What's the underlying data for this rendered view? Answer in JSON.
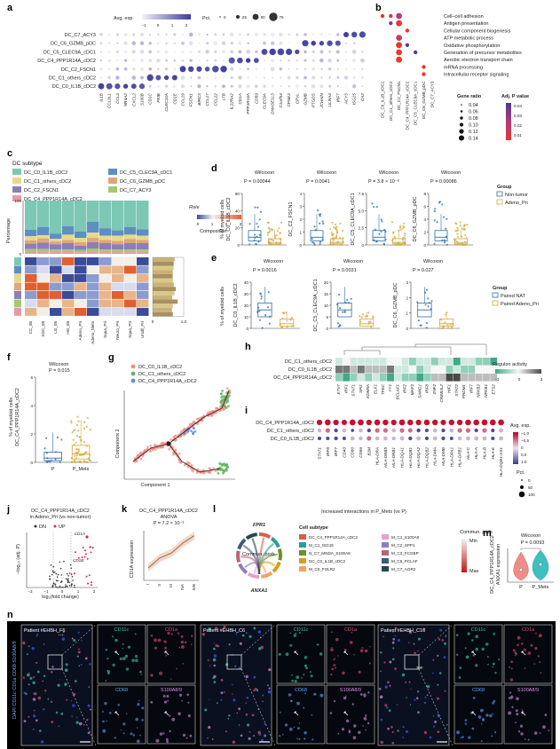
{
  "panel_labels": [
    "a",
    "b",
    "c",
    "d",
    "e",
    "f",
    "g",
    "h",
    "i",
    "j",
    "k",
    "l",
    "m",
    "n"
  ],
  "a": {
    "legend_expr_title": "Avg. exp.",
    "legend_expr_ticks": [
      "−1",
      "0",
      "1",
      "2"
    ],
    "legend_pct_title": "Pct.",
    "legend_pct_values": [
      "0",
      "25",
      "50",
      "75"
    ],
    "rows": [
      "DC_C7_ACY3",
      "DC_C6_GZMB_pDC",
      "DC_C5_CLEC9A_cDC1",
      "DC_C4_PPP1R14A_cDC2",
      "DC_C2_FSCN1",
      "DC_C1_others_cDC2",
      "DC_C0_IL1B_cDC2"
    ],
    "genes": [
      "IL1B",
      "CCL3L1",
      "CCL3",
      "NR4A2",
      "CXCL2",
      "S100B",
      "CD1C",
      "PKIB",
      "CLEC10A",
      "CD1E",
      "CCL19",
      "FSCN1",
      "BIRC3",
      "CCL17",
      "CCL22",
      "LTB",
      "IL22RA2",
      "CD1A",
      "PPP1R14A",
      "CD59",
      "CLEC9A",
      "DNASE1L3",
      "C1orf54",
      "CPNE3",
      "CPVL",
      "GZMB",
      "PTGDS",
      "JCHAIN",
      "LILRA4",
      "IRF7",
      "ACY3",
      "ISG15",
      "CA2"
    ]
  },
  "b": {
    "terms": [
      "Cell–cell adhesion",
      "Antigen presentation",
      "Cellular component biogenesis",
      "ATP metabolic process",
      "Oxidative phosphorylation",
      "Generation of precursor metabolites",
      "Aerobic electron transport chain",
      "mRNA processing",
      "Intracellular receptor signaling"
    ],
    "clusters": [
      "DC_C0_IL1B_cDC2",
      "DC_C1_others_cDC2",
      "DC_C2_FSCN1",
      "DC_C4_PPP1R14A_cDC2",
      "DC_C5_CLEC9A_cDC1",
      "DC_C6_GZMB_pDC",
      "DC_C7_ACY3"
    ],
    "gene_ratio_title": "Gene ratio",
    "gene_ratio_values": [
      "0.04",
      "0.06",
      "0.08",
      "0.10",
      "0.12",
      "0.14"
    ],
    "padj_title": "Adj. P value",
    "padj_ticks": [
      "0.04",
      "0.03",
      "0.02",
      "0.01"
    ]
  },
  "c": {
    "subtype_title": "DC subtype",
    "subtypes": [
      {
        "name": "DC_C0_IL1B_cDC2",
        "color": "#7cc8b4"
      },
      {
        "name": "DC_C5_CLEC9A_cDC1",
        "color": "#5d8fc2"
      },
      {
        "name": "DC_C1_others_cDC2",
        "color": "#e8d98a"
      },
      {
        "name": "DC_C6_GZMB_pDC",
        "color": "#e0a57a"
      },
      {
        "name": "DC_C2_FSCN1",
        "color": "#8c7fb8"
      },
      {
        "name": "DC_C7_ACY3",
        "color": "#a5c96e"
      },
      {
        "name": "DC_C4_PPP1R14A_cDC2",
        "color": "#e69aa8"
      }
    ],
    "ylabel": "Percentage",
    "yticks": [
      "0",
      "100"
    ],
    "roe_title": "Ro/e",
    "roe_ticks": [
      "0",
      "1",
      "2",
      "3"
    ],
    "composition_title": "Composition",
    "comp_ticks": [
      "0",
      "1.0"
    ],
    "xlabels": [
      "CC_08",
      "XGC_08",
      "LG_08",
      "HG_08",
      "Adeno_Pri",
      "Adeno_Mets",
      "Squa_Pri",
      "Neuro_Pri",
      "Squa_Pri",
      "Undif_Pri"
    ]
  },
  "d": {
    "ylabel": "% of myeloid cells",
    "plots": [
      {
        "test": "Wilcoxon",
        "p": "P = 0.00044",
        "ylab": "DC_C0_IL1B_cDC2",
        "yticks": [
          "0",
          "20",
          "40",
          "60"
        ]
      },
      {
        "test": "Wilcoxon",
        "p": "P = 0.0041",
        "ylab": "DC_C2_FSCN1",
        "yticks": [
          "0",
          "1",
          "2",
          "3",
          "4"
        ]
      },
      {
        "test": "Wilcoxon",
        "p": "P = 3.8 × 10⁻⁶",
        "ylab": "DC_C5_CLEC9A_cDC1",
        "yticks": [
          "0",
          "2.5",
          "5.0",
          "7.5"
        ]
      },
      {
        "test": "Wilcoxon",
        "p": "P = 0.00086",
        "ylab": "DC_C6_GZMB_pDC",
        "yticks": [
          "0",
          "2",
          "4",
          "6",
          "8"
        ]
      }
    ],
    "group_title": "Group",
    "groups": [
      "Non-tumor",
      "Adeno_Pri"
    ]
  },
  "e": {
    "ylabel": "% of myeloid cells",
    "plots": [
      {
        "test": "Wilcoxon",
        "p": "P = 0.0016",
        "ylab": "DC_C0_IL1B_cDC2",
        "yticks": [
          "0",
          "10",
          "20",
          "30",
          "40"
        ]
      },
      {
        "test": "Wilcoxon",
        "p": "P = 0.0031",
        "ylab": "DC_C5_CLEC9A_cDC1",
        "yticks": [
          "0",
          "5",
          "10",
          "15",
          "20"
        ]
      },
      {
        "test": "Wilcoxon",
        "p": "P = 0.027",
        "ylab": "DC_C6_GZMB_pDC",
        "yticks": [
          "0",
          "1",
          "2",
          "3"
        ]
      }
    ],
    "group_title": "Group",
    "groups": [
      "Paired NAT",
      "Paired Adeno_Pri"
    ]
  },
  "f": {
    "test": "Wilcoxon",
    "p": "P = 0.015",
    "ylabel1": "% of myeloid cells",
    "ylabel2": "DC_C4_PPP1R14A_cDC2",
    "yticks": [
      "0",
      "2",
      "4",
      "6"
    ],
    "xlabels": [
      "P",
      "P_Mets"
    ]
  },
  "g": {
    "legend": [
      {
        "name": "DC_C0_IL1B_cDC2",
        "color": "#f28b82"
      },
      {
        "name": "DC_C1_others_cDC2",
        "color": "#5cb85c"
      },
      {
        "name": "DC_C4_PPP1R14A_cDC2",
        "color": "#6a8fd0"
      }
    ],
    "xlabel": "Component 1",
    "ylabel": "Component 2"
  },
  "h": {
    "rows": [
      "DC_C1_others_cDC2",
      "DC_C0_IL1B_cDC2",
      "DC_C4_PPP1R14A_cDC2"
    ],
    "tfs": [
      "ETV7",
      "IRF1",
      "STAT1",
      "SPI1",
      "KDM5A",
      "ELF1",
      "TFEC",
      "YY1",
      "BCLAF1",
      "IRF2",
      "MAF3",
      "SAMD1",
      "IRF8",
      "ZNF2",
      "CREB3L2",
      "HIF1",
      "STAT2",
      "PRDM1",
      "IRF7",
      "NFKB2",
      "NFKB1",
      "ETS2"
    ],
    "legend_title": "Regulon activity",
    "legend_ticks": [
      "−3",
      "0",
      "3"
    ]
  },
  "i": {
    "rows": [
      "DC_C4_PPP1R14A_cDC2",
      "DC_C1_others_cDC2",
      "DC_C0_IL1B_cDC2"
    ],
    "genes": [
      "STAT1",
      "IRF8",
      "IRF7",
      "CD40",
      "CD80",
      "CD86",
      "B2M",
      "HLA-DRA",
      "HLA-DRB5",
      "HLA-DRB1",
      "HLA-DQA1",
      "HLA-DQB1",
      "HLA-DQA2",
      "HLA-DQB2",
      "HLA-DMA",
      "HLA-DMB",
      "HLA-DPA1",
      "HLA-DPB1",
      "HLA-C",
      "HLA-A",
      "HLA-B",
      "HLA-E",
      "HLA-DQB1-AS1"
    ],
    "legend_title": "Avg. exp.",
    "legend_ticks": [
      "−1.0",
      "−0.5",
      "0",
      "0.5",
      "1.0"
    ],
    "pct_title": "Pct.",
    "pct_values": [
      "0",
      "50",
      "100"
    ]
  },
  "j": {
    "title1": "DC_C4_PPP1R14A_cDC2",
    "title2": "in Adeno_Pri (vs non-tumor)",
    "legend": [
      "DN",
      "UP"
    ],
    "xlabel": "log₂(fold change)",
    "ylabel": "−log₁₀ (adj. P)",
    "xticks": [
      "−2",
      "−1",
      "0",
      "1",
      "2"
    ],
    "genes": [
      "CD1A",
      "CD1B"
    ]
  },
  "k": {
    "title": "DC_C4_PPP1R14A_cDC2",
    "subtitle": "ANOVA",
    "p": "P = 7.2 × 10⁻³",
    "ylabel": "CD1A expression",
    "xlabels": [
      "I",
      "II",
      "III",
      "IVA",
      "IVB"
    ],
    "values": [
      0.25,
      0.45,
      0.55,
      0.75,
      0.9
    ]
  },
  "l": {
    "title": "Increased interactions in P_Mets (vs P)",
    "top_label": "FPR1",
    "center_label": "Commun. prob.",
    "bottom_label": "ANXA1",
    "cell_subtype_title": "Cell subtype",
    "subtypes_left": [
      {
        "name": "DC_C4_PPP1R14A_cDC2",
        "color": "#e05a4f"
      },
      {
        "name": "M_C1_ISG15",
        "color": "#2a9d8f"
      },
      {
        "name": "N_C7_MNDA_S100A8",
        "color": "#6b8e23"
      },
      {
        "name": "DC_C0_IL1B_cDC2",
        "color": "#d4a017"
      },
      {
        "name": "M_C0_FOLR2",
        "color": "#f4a261"
      }
    ],
    "subtypes_right": [
      {
        "name": "M_C1_S100A8",
        "color": "#e9a0c9"
      },
      {
        "name": "M_C2_SPP1",
        "color": "#8e7cc3"
      },
      {
        "name": "M_C3_FCGBP",
        "color": "#b56576"
      },
      {
        "name": "M_C5_PCLAF",
        "color": "#3d5a80"
      },
      {
        "name": "M_C7_AGR2",
        "color": "#264653"
      }
    ],
    "prob_title": "Commun. prob.",
    "prob_ticks": [
      "Min",
      "Max"
    ]
  },
  "m": {
    "test": "Wilcoxon",
    "p": "P = 0.0093",
    "ylabel1": "DC_C4_PPP1R14A_cDC2",
    "ylabel2": "ANXA1 expression",
    "xlabels": [
      "P",
      "P_Mets"
    ]
  },
  "n": {
    "patients": [
      "Patient #EHBH_F6",
      "Patient #EHBH_C6",
      "Patient #EHBH_C16"
    ],
    "channels": [
      "CD11c",
      "CD1a",
      "CD68",
      "S100A8/9"
    ],
    "side_label": "DAPI CD11c CD1a CD68 S100A8/9"
  }
}
